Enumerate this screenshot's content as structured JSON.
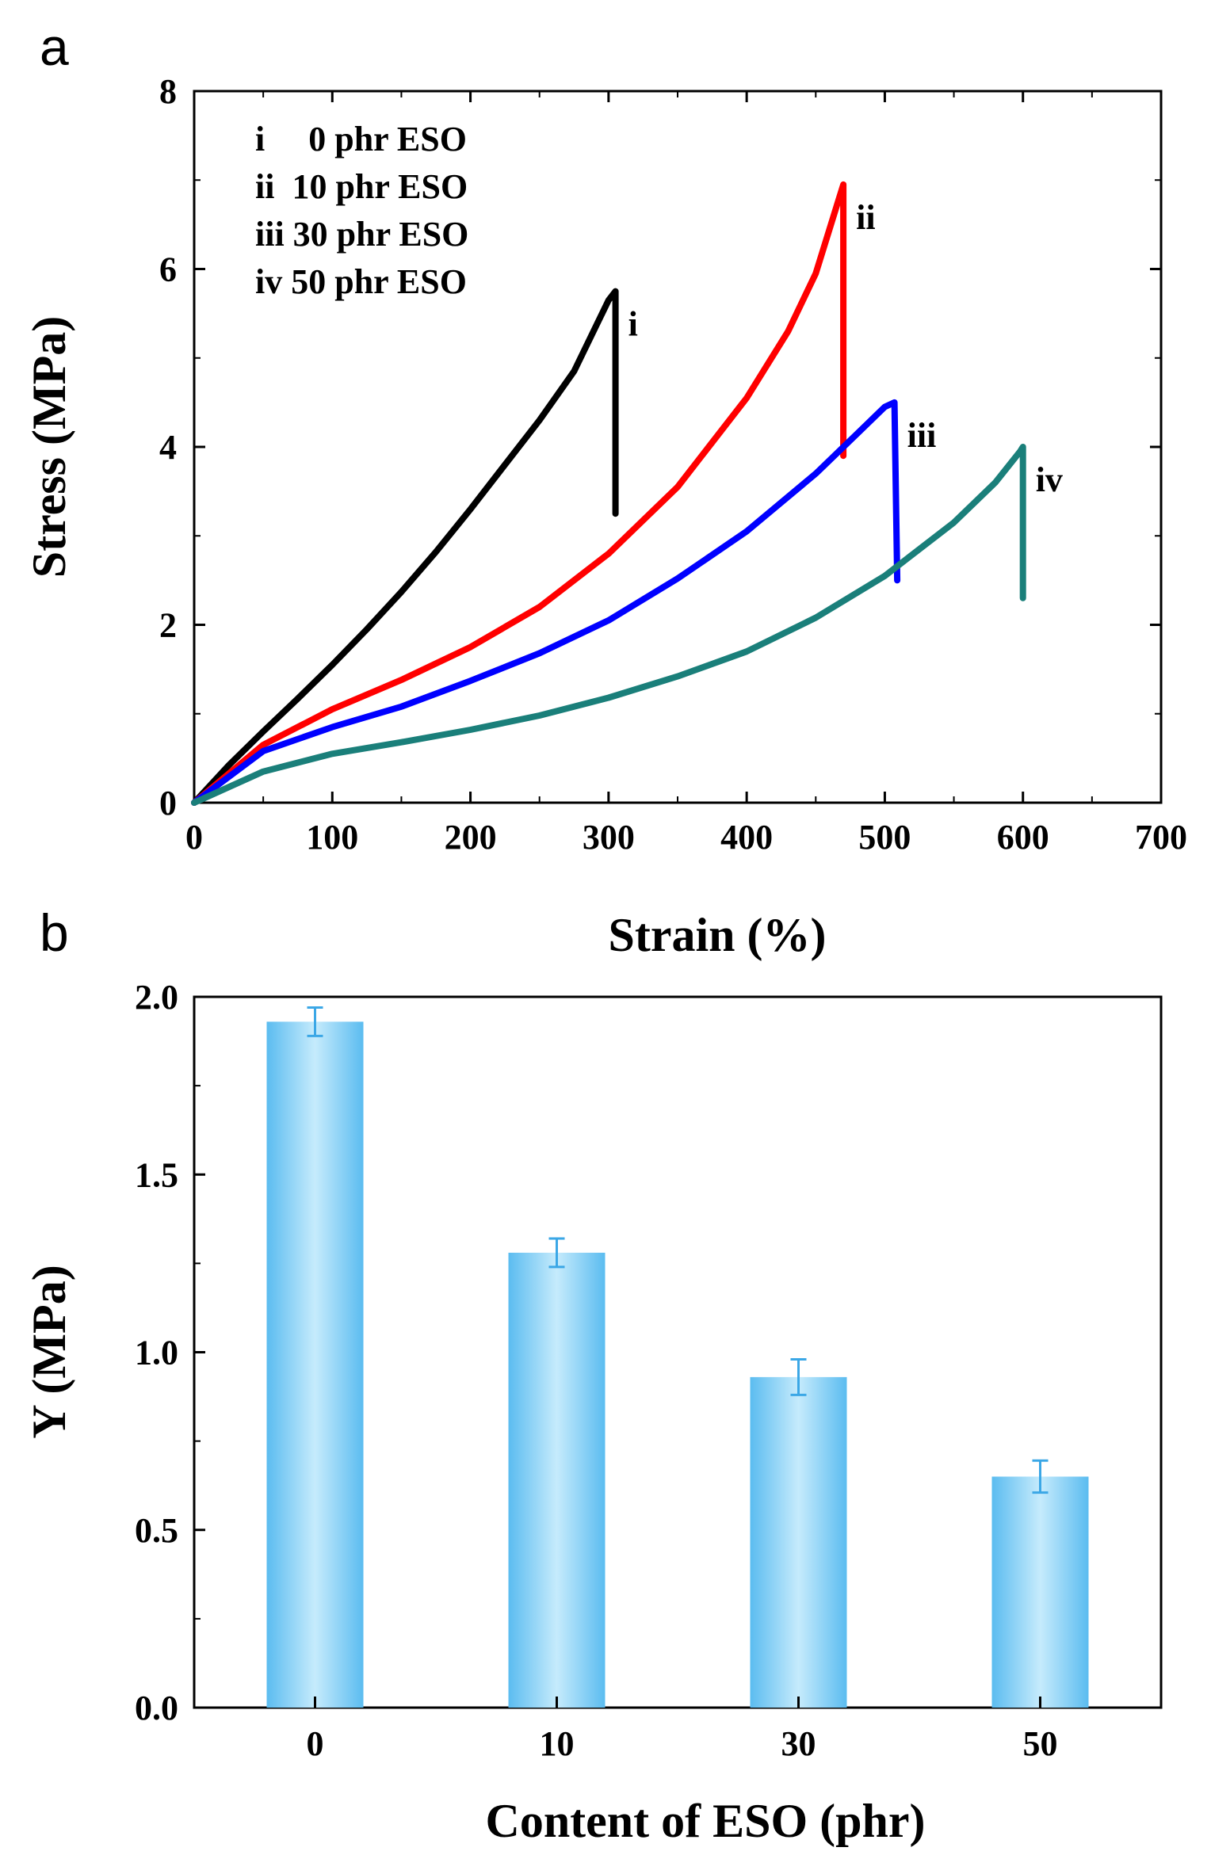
{
  "chart_data": [
    {
      "panel": "a",
      "type": "line",
      "xlabel": "Strain (%)",
      "ylabel": "Stress (MPa)",
      "xlim": [
        0,
        700
      ],
      "ylim": [
        0,
        8
      ],
      "x_ticks": [
        0,
        100,
        200,
        300,
        400,
        500,
        600,
        700
      ],
      "y_ticks": [
        0,
        2,
        4,
        6,
        8
      ],
      "legend_position": "top-left",
      "legend": [
        {
          "id": "i",
          "text": "i     0 phr ESO"
        },
        {
          "id": "ii",
          "text": "ii  10 phr ESO"
        },
        {
          "id": "iii",
          "text": "iii 30 phr ESO"
        },
        {
          "id": "iv",
          "text": "iv 50 phr ESO"
        }
      ],
      "series": [
        {
          "name": "i",
          "label": "i",
          "color": "#000000",
          "x": [
            0,
            25,
            50,
            75,
            100,
            125,
            150,
            175,
            200,
            225,
            250,
            275,
            300,
            305,
            305
          ],
          "y": [
            0,
            0.42,
            0.8,
            1.17,
            1.55,
            1.95,
            2.37,
            2.82,
            3.3,
            3.8,
            4.3,
            4.85,
            5.65,
            5.75,
            3.25
          ]
        },
        {
          "name": "ii",
          "label": "ii",
          "color": "#ff0000",
          "x": [
            0,
            50,
            100,
            150,
            200,
            250,
            300,
            350,
            400,
            430,
            450,
            465,
            470,
            470
          ],
          "y": [
            0,
            0.65,
            1.05,
            1.38,
            1.75,
            2.2,
            2.8,
            3.55,
            4.55,
            5.3,
            5.95,
            6.7,
            6.95,
            3.9
          ]
        },
        {
          "name": "iii",
          "label": "iii",
          "color": "#0000ff",
          "x": [
            0,
            50,
            100,
            150,
            200,
            250,
            300,
            350,
            400,
            450,
            480,
            500,
            507,
            509
          ],
          "y": [
            0,
            0.58,
            0.85,
            1.08,
            1.37,
            1.68,
            2.05,
            2.52,
            3.05,
            3.7,
            4.15,
            4.45,
            4.5,
            2.5
          ]
        },
        {
          "name": "iv",
          "label": "iv",
          "color": "#1a7f7a",
          "x": [
            0,
            50,
            100,
            150,
            200,
            250,
            300,
            350,
            400,
            450,
            500,
            550,
            580,
            598,
            600,
            600
          ],
          "y": [
            0,
            0.35,
            0.55,
            0.68,
            0.82,
            0.98,
            1.18,
            1.42,
            1.7,
            2.08,
            2.55,
            3.15,
            3.6,
            3.95,
            4.0,
            2.3
          ]
        }
      ]
    },
    {
      "panel": "b",
      "type": "bar",
      "xlabel": "Content of ESO (phr)",
      "ylabel": "Y (MPa)",
      "categories": [
        "0",
        "10",
        "30",
        "50"
      ],
      "values": [
        1.93,
        1.28,
        0.93,
        0.65
      ],
      "errors": [
        0.04,
        0.04,
        0.05,
        0.045
      ],
      "ylim": [
        0,
        2.0
      ],
      "y_ticks": [
        "0.0",
        "0.5",
        "1.0",
        "1.5",
        "2.0"
      ],
      "bar_color": "#6ec6f4",
      "bar_highlight": "#bfe7fb",
      "error_color": "#3ba7e6"
    }
  ],
  "panel_labels": [
    "a",
    "b"
  ]
}
